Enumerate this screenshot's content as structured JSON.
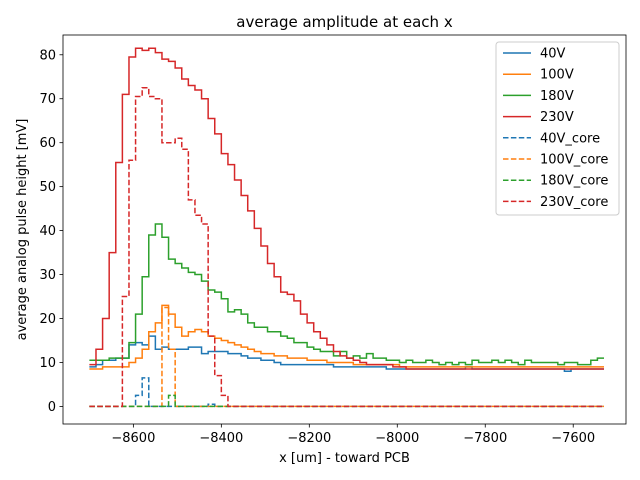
{
  "chart_data": {
    "type": "line",
    "drawstyle": "steps",
    "title": "average amplitude at each x",
    "xlabel": "x [um] - toward PCB",
    "ylabel": "average analog pulse height [mV]",
    "xlim": [
      -8760,
      -7480
    ],
    "ylim": [
      -4,
      84.5
    ],
    "xticks": [
      -8600,
      -8400,
      -8200,
      -8000,
      -7800,
      -7600
    ],
    "xtick_labels": [
      "−8600",
      "−8400",
      "−8200",
      "−8000",
      "−7800",
      "−7600"
    ],
    "yticks": [
      0,
      10,
      20,
      30,
      40,
      50,
      60,
      70,
      80
    ],
    "ytick_labels": [
      "0",
      "10",
      "20",
      "30",
      "40",
      "50",
      "60",
      "70",
      "80"
    ],
    "legend_position": "top-right",
    "x_start": -8700,
    "x_step": 15,
    "series": [
      {
        "name": "40V",
        "color": "#1f77b4",
        "dash": "solid",
        "values": [
          9.0,
          9.5,
          10.5,
          10.5,
          11.0,
          11.0,
          14.0,
          14.5,
          14.0,
          16.0,
          13.0,
          13.5,
          13.0,
          13.0,
          13.0,
          13.5,
          13.5,
          12.0,
          12.5,
          12.5,
          12.5,
          12.0,
          12.0,
          11.5,
          11.0,
          11.0,
          10.5,
          10.5,
          10.0,
          9.5,
          9.5,
          9.5,
          9.5,
          9.5,
          9.5,
          9.5,
          9.5,
          9.0,
          9.0,
          9.0,
          9.0,
          9.0,
          9.0,
          9.0,
          9.0,
          8.5,
          8.5,
          8.5,
          8.5,
          8.5,
          8.5,
          8.5,
          8.5,
          8.5,
          8.5,
          8.5,
          8.5,
          9.0,
          8.5,
          8.5,
          8.5,
          8.5,
          8.5,
          8.5,
          8.5,
          8.5,
          8.5,
          8.5,
          8.5,
          8.5,
          8.5,
          8.5,
          8.0,
          8.5,
          8.5,
          8.5,
          8.5,
          8.5
        ]
      },
      {
        "name": "100V",
        "color": "#ff7f0e",
        "dash": "solid",
        "values": [
          8.5,
          8.5,
          9.0,
          9.0,
          9.0,
          9.0,
          10.0,
          11.0,
          13.0,
          17.0,
          19.0,
          23.0,
          21.0,
          18.0,
          16.0,
          17.0,
          17.5,
          17.0,
          16.0,
          15.5,
          15.0,
          14.5,
          14.0,
          13.5,
          13.0,
          12.5,
          12.0,
          12.0,
          11.5,
          11.5,
          11.0,
          11.0,
          11.0,
          10.5,
          10.5,
          10.5,
          10.0,
          10.0,
          10.0,
          10.0,
          9.5,
          9.5,
          9.5,
          9.5,
          9.5,
          9.5,
          9.5,
          9.0,
          9.0,
          9.0,
          9.0,
          9.0,
          9.0,
          9.0,
          9.0,
          9.0,
          9.0,
          9.0,
          9.0,
          9.0,
          9.0,
          9.0,
          9.0,
          9.0,
          9.0,
          9.0,
          9.0,
          9.0,
          9.0,
          9.0,
          9.0,
          9.0,
          9.0,
          9.0,
          9.0,
          9.0,
          9.0,
          9.0
        ]
      },
      {
        "name": "180V",
        "color": "#2ca02c",
        "dash": "solid",
        "values": [
          10.5,
          10.5,
          10.5,
          11.0,
          11.0,
          11.0,
          14.5,
          21.0,
          29.5,
          39.0,
          41.5,
          38.5,
          33.5,
          32.5,
          31.5,
          30.5,
          30.0,
          28.5,
          26.5,
          26.0,
          24.5,
          21.5,
          22.0,
          21.0,
          19.0,
          18.0,
          18.0,
          17.0,
          17.0,
          16.0,
          15.5,
          14.5,
          14.5,
          13.5,
          13.0,
          12.5,
          12.5,
          11.5,
          12.5,
          11.0,
          11.5,
          11.0,
          12.0,
          11.0,
          11.0,
          10.5,
          10.5,
          10.0,
          10.5,
          10.0,
          10.0,
          10.5,
          10.0,
          9.5,
          10.0,
          9.5,
          10.0,
          9.5,
          10.5,
          10.0,
          10.0,
          10.5,
          10.0,
          10.5,
          10.0,
          9.5,
          10.5,
          10.0,
          10.0,
          10.0,
          10.0,
          9.5,
          10.0,
          10.0,
          9.5,
          9.5,
          10.5,
          11.0
        ]
      },
      {
        "name": "230V",
        "color": "#d62728",
        "dash": "solid",
        "values": [
          9.5,
          13.0,
          20.0,
          35.0,
          55.5,
          71.0,
          79.5,
          81.5,
          81.0,
          81.5,
          80.5,
          79.0,
          78.5,
          77.0,
          74.5,
          73.0,
          72.0,
          70.0,
          65.5,
          62.0,
          57.5,
          55.0,
          51.5,
          48.0,
          44.5,
          40.5,
          36.5,
          32.5,
          29.5,
          26.0,
          25.5,
          24.0,
          21.0,
          19.0,
          17.0,
          15.5,
          14.0,
          12.5,
          11.5,
          11.0,
          10.5,
          10.0,
          9.5,
          9.5,
          9.5,
          9.5,
          9.0,
          9.0,
          8.5,
          8.5,
          8.5,
          8.5,
          8.5,
          8.5,
          8.5,
          8.5,
          8.5,
          8.5,
          8.5,
          8.5,
          8.5,
          8.5,
          8.5,
          8.5,
          8.5,
          8.5,
          8.5,
          8.5,
          8.5,
          8.5,
          8.5,
          8.5,
          8.5,
          8.5,
          8.5,
          8.5,
          8.5,
          8.5
        ]
      },
      {
        "name": "40V_core",
        "color": "#1f77b4",
        "dash": "dashed",
        "values": [
          0,
          0,
          0,
          0,
          0,
          0,
          0,
          2.5,
          6.5,
          0,
          0,
          0,
          0,
          0,
          0,
          0,
          0,
          0,
          0.5,
          0,
          0,
          0,
          0,
          0,
          0,
          0,
          0,
          0,
          0,
          0,
          0,
          0,
          0,
          0,
          0,
          0,
          0,
          0,
          0,
          0,
          0,
          0,
          0,
          0,
          0,
          0,
          0,
          0,
          0,
          0,
          0,
          0,
          0,
          0,
          0,
          0,
          0,
          0,
          0,
          0,
          0,
          0,
          0,
          0,
          0,
          0,
          0,
          0,
          0,
          0,
          0,
          0,
          0,
          0,
          0,
          0,
          0,
          0
        ]
      },
      {
        "name": "100V_core",
        "color": "#ff7f0e",
        "dash": "dashed",
        "values": [
          0,
          0,
          0,
          0,
          0,
          0,
          0,
          0,
          0,
          0,
          0,
          22.5,
          13.0,
          0,
          0,
          0,
          0,
          0,
          0,
          0,
          0,
          0,
          0,
          0,
          0,
          0,
          0,
          0,
          0,
          0,
          0,
          0,
          0,
          0,
          0,
          0,
          0,
          0,
          0,
          0,
          0,
          0,
          0,
          0,
          0,
          0,
          0,
          0,
          0,
          0,
          0,
          0,
          0,
          0,
          0,
          0,
          0,
          0,
          0,
          0,
          0,
          0,
          0,
          0,
          0,
          0,
          0,
          0,
          0,
          0,
          0,
          0,
          0,
          0,
          0,
          0,
          0,
          0
        ]
      },
      {
        "name": "180V_core",
        "color": "#2ca02c",
        "dash": "dashed",
        "values": [
          0,
          0,
          0,
          0,
          0,
          0,
          0,
          0,
          0,
          0,
          0,
          0,
          2.5,
          0,
          0,
          0,
          0,
          0,
          0,
          0,
          0,
          0,
          0,
          0,
          0,
          0,
          0,
          0,
          0,
          0,
          0,
          0,
          0,
          0,
          0,
          0,
          0,
          0,
          0,
          0,
          0,
          0,
          0,
          0,
          0,
          0,
          0,
          0,
          0,
          0,
          0,
          0,
          0,
          0,
          0,
          0,
          0,
          0,
          0,
          0,
          0,
          0,
          0,
          0,
          0,
          0,
          0,
          0,
          0,
          0,
          0,
          0,
          0,
          0,
          0,
          0,
          0,
          0
        ]
      },
      {
        "name": "230V_core",
        "color": "#d62728",
        "dash": "dashed",
        "values": [
          0,
          0,
          0,
          0,
          0,
          25.0,
          56.0,
          70.5,
          72.5,
          70.5,
          70.0,
          60.0,
          60.0,
          61.0,
          58.5,
          47.0,
          43.5,
          41.5,
          16.0,
          7.0,
          2.5,
          0,
          0,
          0,
          0,
          0,
          0,
          0,
          0,
          0,
          0,
          0,
          0,
          0,
          0,
          0,
          0,
          0,
          0,
          0,
          0,
          0,
          0,
          0,
          0,
          0,
          0,
          0,
          0,
          0,
          0,
          0,
          0,
          0,
          0,
          0,
          0,
          0,
          0,
          0,
          0,
          0,
          0,
          0,
          0,
          0,
          0,
          0,
          0,
          0,
          0,
          0,
          0,
          0,
          0,
          0,
          0,
          0
        ]
      }
    ]
  }
}
